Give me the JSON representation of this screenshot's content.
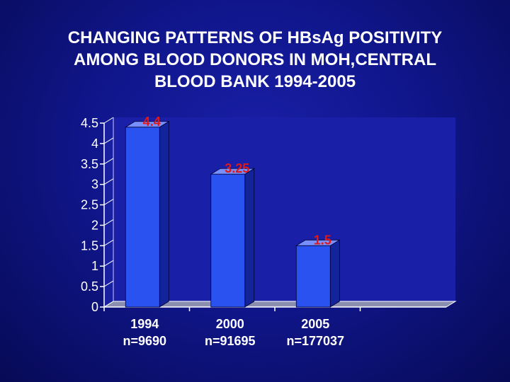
{
  "title_lines": [
    "CHANGING PATTERNS OF HBsAg POSITIVITY",
    "AMONG BLOOD DONORS IN MOH,CENTRAL",
    "BLOOD BANK 1994-2005"
  ],
  "chart_data": {
    "type": "bar",
    "title": "CHANGING PATTERNS OF HBsAg POSITIVITY AMONG BLOOD DONORS IN MOH,CENTRAL BLOOD BANK 1994-2005",
    "categories": [
      [
        "1994",
        "n=9690"
      ],
      [
        "2000",
        "n=91695"
      ],
      [
        "2005",
        "n=177037"
      ]
    ],
    "values": [
      4.4,
      3.25,
      1.5
    ],
    "data_labels": [
      "4.4",
      "3.25",
      "1.5"
    ],
    "yticks": [
      "0",
      "0.5",
      "1",
      "1.5",
      "2",
      "2.5",
      "3",
      "3.5",
      "4",
      "4.5"
    ],
    "ylim": [
      0,
      4.5
    ],
    "xlabel": "",
    "ylabel": "",
    "grid": false,
    "legend": "none",
    "colors": {
      "bar_front": "#2a52f0",
      "bar_side": "#13239a",
      "bar_top": "#7890ff",
      "data_label": "#e01818",
      "axis": "#ffffff",
      "plot_wall": "#1a1fa8"
    }
  }
}
